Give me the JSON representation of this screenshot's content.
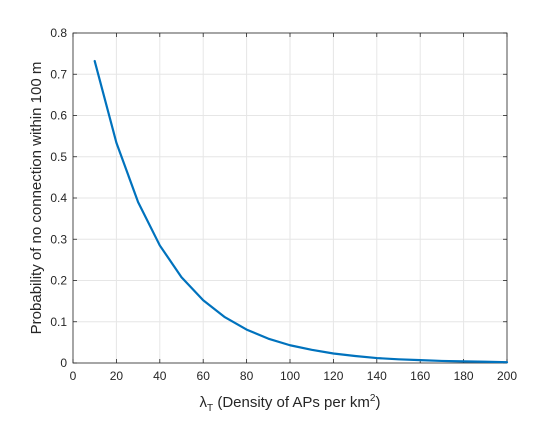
{
  "chart_data": {
    "type": "line",
    "title": "",
    "xlabel": {
      "symbol": "λ",
      "subscript": "T",
      "text": " (Density of APs per km",
      "superscript": "2",
      "suffix": ")"
    },
    "ylabel": "Probability of no connection within 100 m",
    "xlim": [
      0,
      200
    ],
    "ylim": [
      0,
      0.8
    ],
    "x_ticks": [
      0,
      20,
      40,
      60,
      80,
      100,
      120,
      140,
      160,
      180,
      200
    ],
    "y_ticks": [
      0,
      0.1,
      0.2,
      0.3,
      0.4,
      0.5,
      0.6,
      0.7,
      0.8
    ],
    "x_tick_labels": [
      "0",
      "20",
      "40",
      "60",
      "80",
      "100",
      "120",
      "140",
      "160",
      "180",
      "200"
    ],
    "y_tick_labels": [
      "0",
      "0.1",
      "0.2",
      "0.3",
      "0.4",
      "0.5",
      "0.6",
      "0.7",
      "0.8"
    ],
    "grid": true,
    "series": [
      {
        "color": "#0072BD",
        "x": [
          10,
          20,
          30,
          40,
          50,
          60,
          70,
          80,
          90,
          100,
          110,
          120,
          130,
          140,
          150,
          160,
          170,
          180,
          190,
          200
        ],
        "y": [
          0.732,
          0.534,
          0.39,
          0.285,
          0.208,
          0.152,
          0.111,
          0.081,
          0.059,
          0.043,
          0.032,
          0.023,
          0.017,
          0.012,
          0.009,
          0.007,
          0.005,
          0.004,
          0.003,
          0.002
        ]
      }
    ]
  }
}
